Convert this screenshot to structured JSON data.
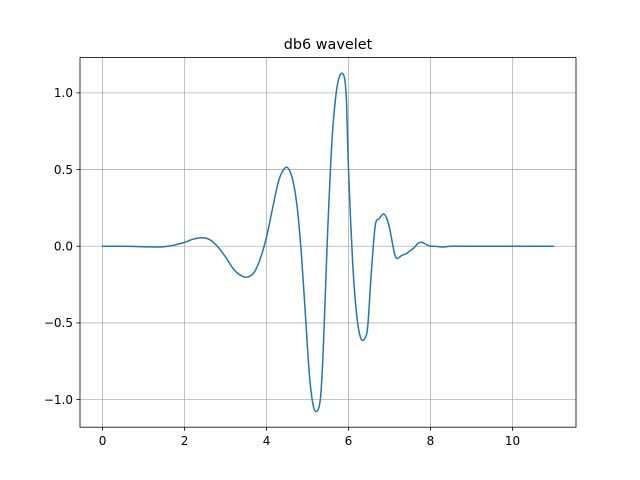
{
  "chart_data": {
    "type": "line",
    "title": "db6 wavelet",
    "xlabel": "",
    "ylabel": "",
    "xlim": [
      -0.55,
      11.55
    ],
    "ylim": [
      -1.18,
      1.23
    ],
    "grid": true,
    "xticks": [
      0,
      2,
      4,
      6,
      8,
      10
    ],
    "xtick_labels": [
      "0",
      "2",
      "4",
      "6",
      "8",
      "10"
    ],
    "yticks": [
      -1.0,
      -0.5,
      0.0,
      0.5,
      1.0
    ],
    "ytick_labels": [
      "−1.0",
      "−0.5",
      "0.0",
      "0.5",
      "1.0"
    ],
    "series": [
      {
        "color": "#1f77b4",
        "x": [
          0,
          0.5,
          1.0,
          1.4,
          1.7,
          2.0,
          2.2,
          2.4,
          2.6,
          2.8,
          3.0,
          3.2,
          3.4,
          3.55,
          3.7,
          3.85,
          4.0,
          4.15,
          4.3,
          4.45,
          4.55,
          4.65,
          4.75,
          4.85,
          4.95,
          5.05,
          5.15,
          5.25,
          5.32,
          5.38,
          5.45,
          5.5,
          5.6,
          5.7,
          5.8,
          5.9,
          5.95,
          6.0,
          6.1,
          6.2,
          6.3,
          6.4,
          6.47,
          6.55,
          6.65,
          6.75,
          6.85,
          6.92,
          7.0,
          7.1,
          7.15,
          7.2,
          7.3,
          7.4,
          7.5,
          7.6,
          7.7,
          7.8,
          7.9,
          8.0,
          8.1,
          8.3,
          8.5,
          8.8,
          9.0,
          9.5,
          10.0,
          10.5,
          11.0
        ],
        "y": [
          0.0,
          0.0,
          -0.003,
          -0.005,
          0.005,
          0.025,
          0.045,
          0.055,
          0.045,
          0.0,
          -0.07,
          -0.15,
          -0.195,
          -0.2,
          -0.17,
          -0.08,
          0.06,
          0.25,
          0.43,
          0.51,
          0.5,
          0.42,
          0.25,
          -0.05,
          -0.45,
          -0.85,
          -1.05,
          -1.07,
          -0.98,
          -0.7,
          -0.2,
          0.15,
          0.7,
          1.0,
          1.12,
          1.1,
          0.95,
          0.5,
          -0.1,
          -0.45,
          -0.6,
          -0.6,
          -0.52,
          -0.2,
          0.13,
          0.18,
          0.21,
          0.19,
          0.12,
          -0.02,
          -0.07,
          -0.08,
          -0.06,
          -0.05,
          -0.03,
          -0.01,
          0.02,
          0.025,
          0.01,
          0.0,
          0.0,
          -0.005,
          0.0,
          0.0,
          0.0,
          0.0,
          0.0,
          0.0,
          0.0
        ]
      }
    ]
  }
}
